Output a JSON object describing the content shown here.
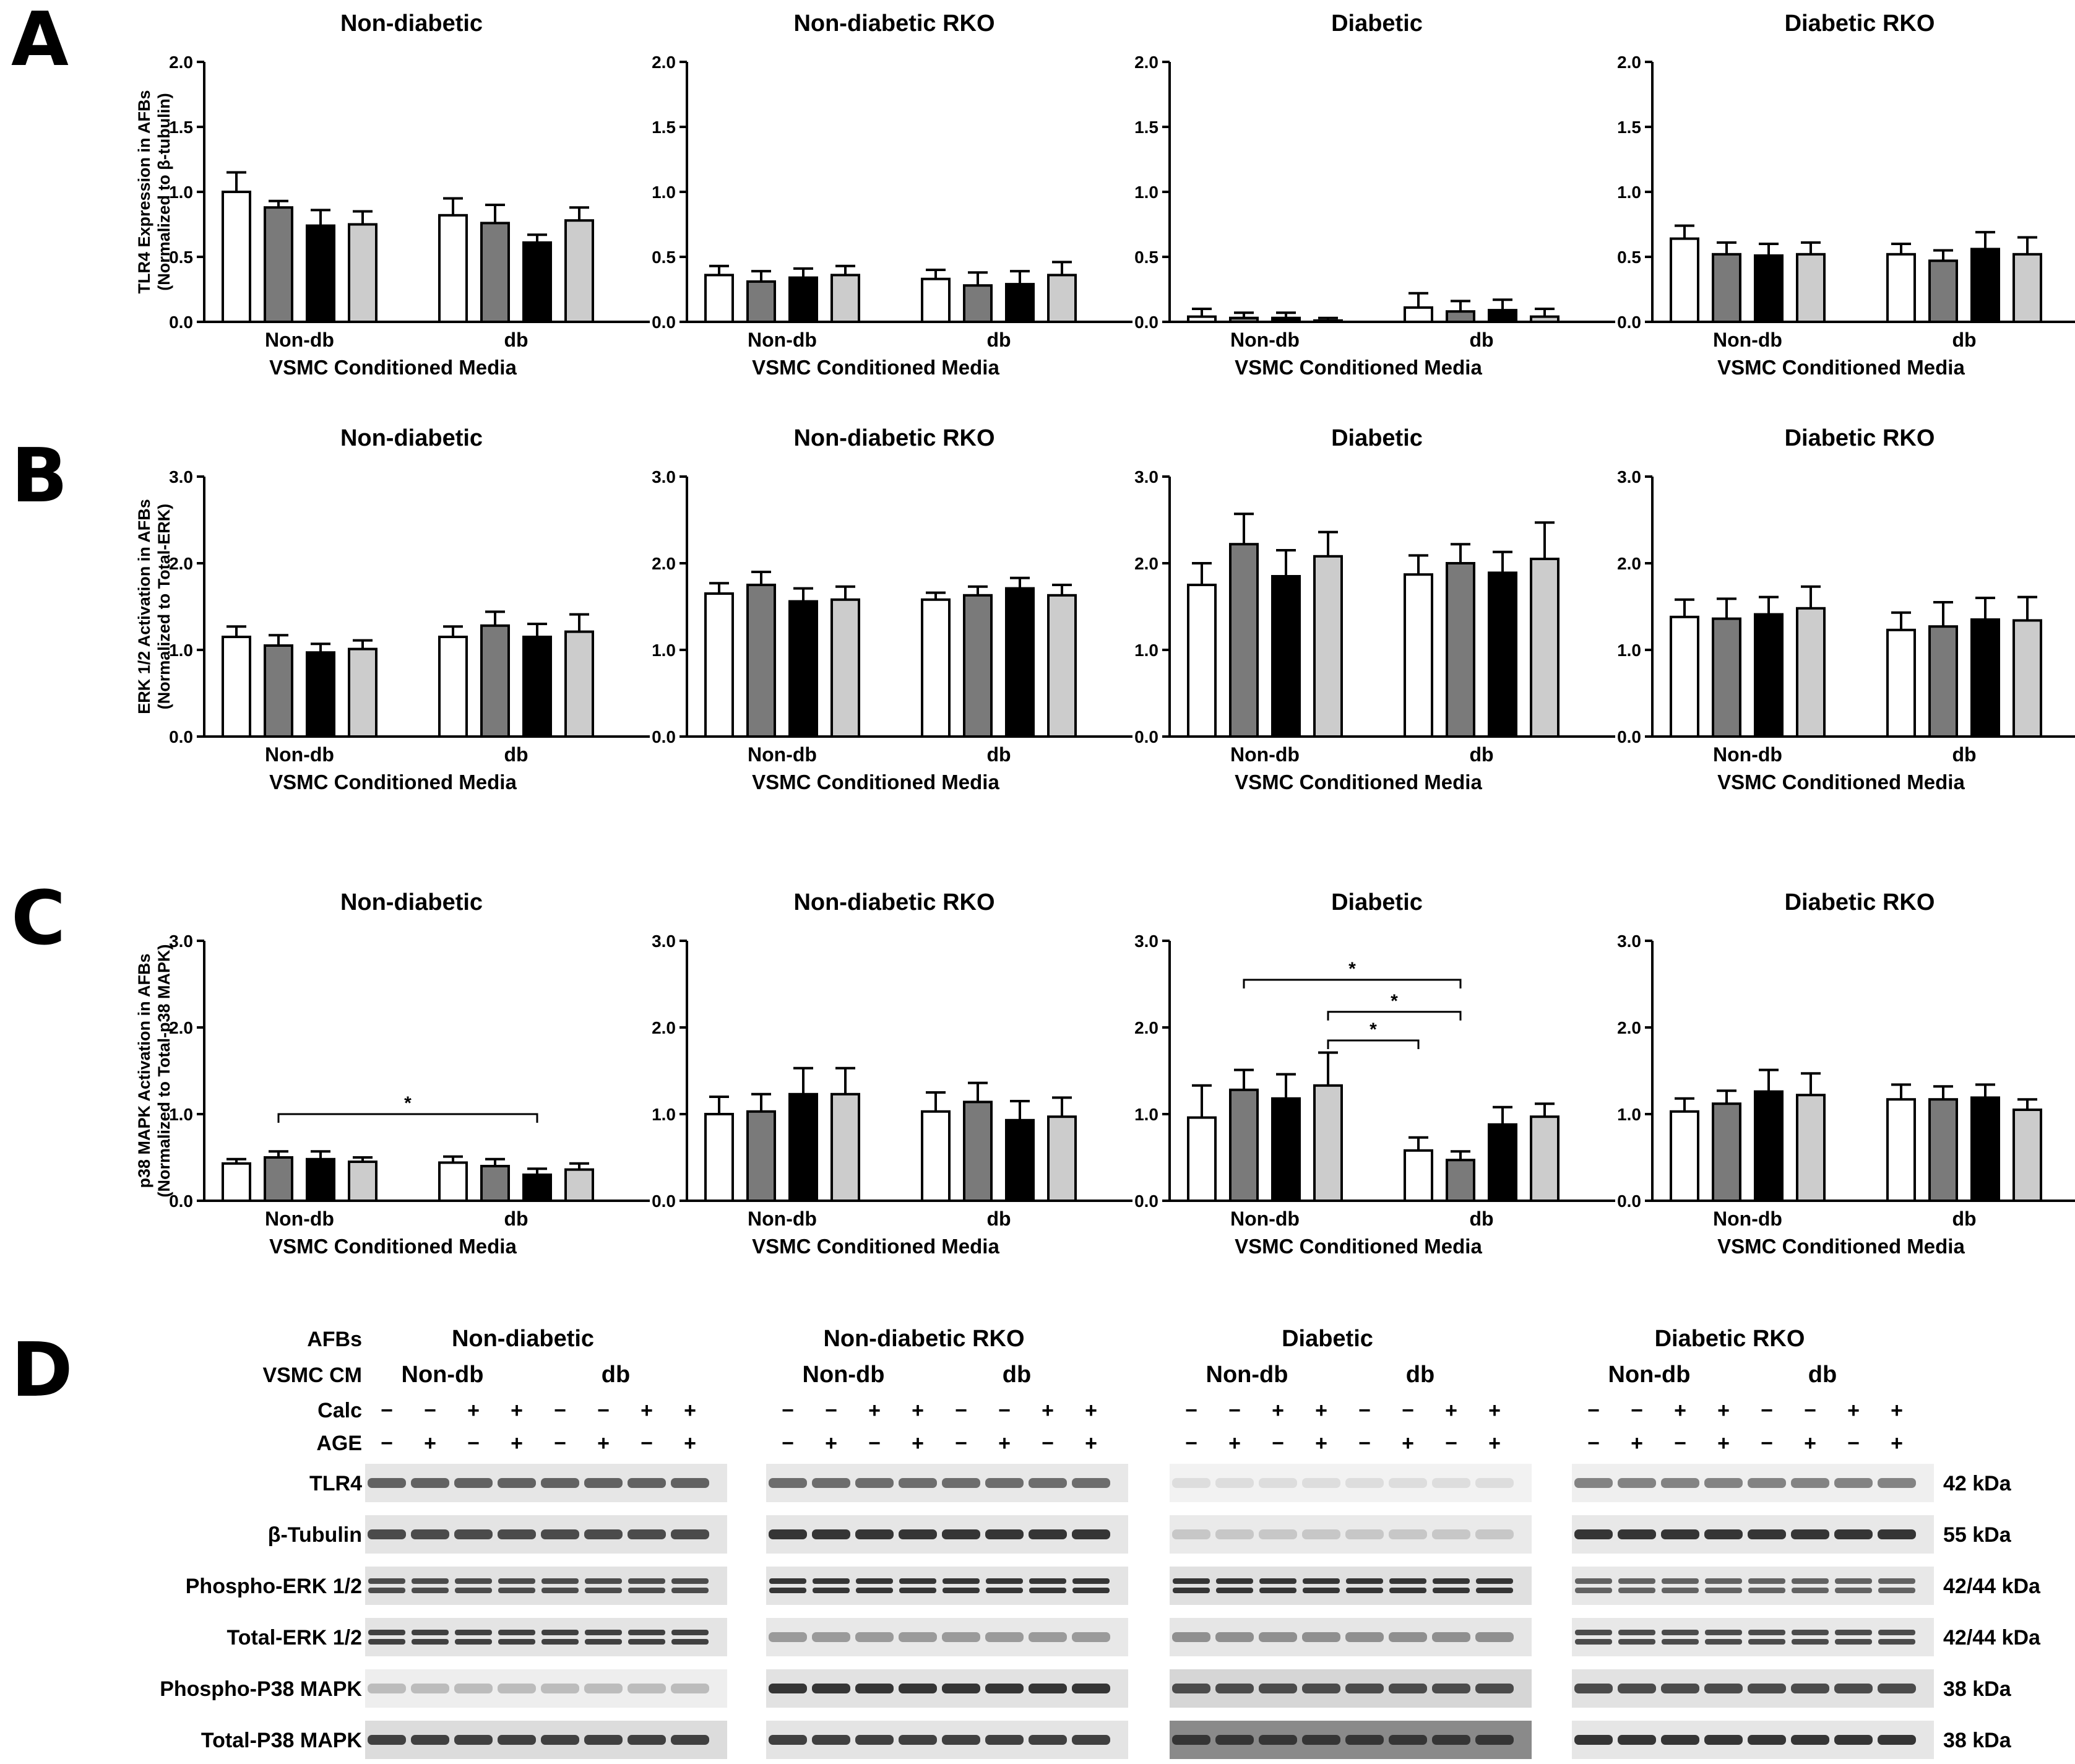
{
  "figure": {
    "panel_letters": [
      "A",
      "B",
      "C",
      "D"
    ]
  },
  "chart_data": [
    {
      "panel": "A",
      "type": "bar",
      "ylabel": [
        "TLR4 Expression in AFBs",
        "(Normalized to β-tubulin)"
      ],
      "ylim": [
        0,
        2.0
      ],
      "yticks": [
        "0.0",
        "0.5",
        "1.0",
        "1.5",
        "2.0"
      ],
      "xlabel": "VSMC Conditioned Media",
      "groups": [
        "Non-db",
        "db"
      ],
      "bar_colors": [
        "#ffffff",
        "#7a7a7a",
        "#000000",
        "#cccccc"
      ],
      "charts": [
        {
          "title": "Non-diabetic",
          "values": [
            [
              1.0,
              0.88,
              0.74,
              0.75
            ],
            [
              0.82,
              0.76,
              0.61,
              0.78
            ]
          ],
          "errors": [
            [
              0.15,
              0.05,
              0.12,
              0.1
            ],
            [
              0.13,
              0.14,
              0.06,
              0.1
            ]
          ],
          "sig": []
        },
        {
          "title": "Non-diabetic RKO",
          "values": [
            [
              0.36,
              0.31,
              0.34,
              0.36
            ],
            [
              0.33,
              0.28,
              0.29,
              0.36
            ]
          ],
          "errors": [
            [
              0.07,
              0.08,
              0.07,
              0.07
            ],
            [
              0.07,
              0.1,
              0.1,
              0.1
            ]
          ],
          "sig": []
        },
        {
          "title": "Diabetic",
          "values": [
            [
              0.04,
              0.03,
              0.03,
              0.01
            ],
            [
              0.11,
              0.08,
              0.09,
              0.04
            ]
          ],
          "errors": [
            [
              0.06,
              0.04,
              0.04,
              0.02
            ],
            [
              0.11,
              0.08,
              0.08,
              0.06
            ]
          ],
          "sig": []
        },
        {
          "title": "Diabetic RKO",
          "values": [
            [
              0.64,
              0.52,
              0.51,
              0.52
            ],
            [
              0.52,
              0.47,
              0.56,
              0.52
            ]
          ],
          "errors": [
            [
              0.1,
              0.09,
              0.09,
              0.09
            ],
            [
              0.08,
              0.08,
              0.13,
              0.13
            ]
          ],
          "sig": []
        }
      ]
    },
    {
      "panel": "B",
      "type": "bar",
      "ylabel": [
        "ERK 1/2 Activation in AFBs",
        "(Normalized to Total-ERK)"
      ],
      "ylim": [
        0,
        3.0
      ],
      "yticks": [
        "0.0",
        "1.0",
        "2.0",
        "3.0"
      ],
      "xlabel": "VSMC Conditioned Media",
      "groups": [
        "Non-db",
        "db"
      ],
      "bar_colors": [
        "#ffffff",
        "#7a7a7a",
        "#000000",
        "#cccccc"
      ],
      "charts": [
        {
          "title": "Non-diabetic",
          "values": [
            [
              1.15,
              1.05,
              0.97,
              1.01
            ],
            [
              1.15,
              1.28,
              1.15,
              1.21
            ]
          ],
          "errors": [
            [
              0.12,
              0.12,
              0.1,
              0.1
            ],
            [
              0.12,
              0.16,
              0.15,
              0.2
            ]
          ],
          "sig": []
        },
        {
          "title": "Non-diabetic RKO",
          "values": [
            [
              1.65,
              1.75,
              1.56,
              1.58
            ],
            [
              1.58,
              1.63,
              1.71,
              1.63
            ]
          ],
          "errors": [
            [
              0.12,
              0.15,
              0.15,
              0.15
            ],
            [
              0.08,
              0.1,
              0.12,
              0.12
            ]
          ],
          "sig": []
        },
        {
          "title": "Diabetic",
          "values": [
            [
              1.75,
              2.22,
              1.85,
              2.08
            ],
            [
              1.87,
              2.0,
              1.89,
              2.05
            ]
          ],
          "errors": [
            [
              0.25,
              0.35,
              0.3,
              0.28
            ],
            [
              0.22,
              0.22,
              0.24,
              0.42
            ]
          ],
          "sig": []
        },
        {
          "title": "Diabetic RKO",
          "values": [
            [
              1.38,
              1.36,
              1.41,
              1.48
            ],
            [
              1.23,
              1.27,
              1.35,
              1.34
            ]
          ],
          "errors": [
            [
              0.2,
              0.23,
              0.2,
              0.25
            ],
            [
              0.2,
              0.28,
              0.25,
              0.27
            ]
          ],
          "sig": []
        }
      ]
    },
    {
      "panel": "C",
      "type": "bar",
      "ylabel": [
        "p38 MAPK Activation in AFBs",
        "(Normalized to Total-p38 MAPK)"
      ],
      "ylim": [
        0,
        3.0
      ],
      "yticks": [
        "0.0",
        "1.0",
        "2.0",
        "3.0"
      ],
      "xlabel": "VSMC Conditioned Media",
      "groups": [
        "Non-db",
        "db"
      ],
      "bar_colors": [
        "#ffffff",
        "#7a7a7a",
        "#000000",
        "#cccccc"
      ],
      "charts": [
        {
          "title": "Non-diabetic",
          "values": [
            [
              0.43,
              0.5,
              0.48,
              0.45
            ],
            [
              0.44,
              0.4,
              0.3,
              0.36
            ]
          ],
          "errors": [
            [
              0.05,
              0.07,
              0.09,
              0.05
            ],
            [
              0.07,
              0.08,
              0.07,
              0.07
            ]
          ],
          "sig": [
            {
              "from": [
                0,
                1
              ],
              "to": [
                1,
                2
              ],
              "level": 1.0,
              "label": "*"
            }
          ]
        },
        {
          "title": "Non-diabetic RKO",
          "values": [
            [
              1.0,
              1.03,
              1.23,
              1.23
            ],
            [
              1.03,
              1.14,
              0.93,
              0.97
            ]
          ],
          "errors": [
            [
              0.2,
              0.2,
              0.3,
              0.3
            ],
            [
              0.22,
              0.22,
              0.22,
              0.22
            ]
          ],
          "sig": []
        },
        {
          "title": "Diabetic",
          "values": [
            [
              0.96,
              1.28,
              1.18,
              1.33
            ],
            [
              0.58,
              0.47,
              0.88,
              0.97
            ]
          ],
          "errors": [
            [
              0.37,
              0.23,
              0.28,
              0.38
            ],
            [
              0.15,
              0.1,
              0.2,
              0.15
            ]
          ],
          "sig": [
            {
              "from": [
                0,
                1
              ],
              "to": [
                1,
                1
              ],
              "level": 2.55,
              "label": "*"
            },
            {
              "from": [
                0,
                3
              ],
              "to": [
                1,
                1
              ],
              "level": 2.18,
              "label": "*"
            },
            {
              "from": [
                0,
                3
              ],
              "to": [
                1,
                0
              ],
              "level": 1.85,
              "label": "*"
            }
          ]
        },
        {
          "title": "Diabetic RKO",
          "values": [
            [
              1.03,
              1.12,
              1.26,
              1.22
            ],
            [
              1.17,
              1.17,
              1.19,
              1.05
            ]
          ],
          "errors": [
            [
              0.15,
              0.15,
              0.25,
              0.25
            ],
            [
              0.17,
              0.15,
              0.15,
              0.12
            ]
          ],
          "sig": []
        }
      ]
    }
  ],
  "western": {
    "header_afbs": "AFBs",
    "header_vsmc": "VSMC CM",
    "header_calc": "Calc",
    "header_age": "AGE",
    "groups": [
      "Non-db",
      "db"
    ],
    "blots": [
      {
        "title": "Non-diabetic"
      },
      {
        "title": "Non-diabetic RKO"
      },
      {
        "title": "Diabetic"
      },
      {
        "title": "Diabetic RKO"
      }
    ],
    "calc_signs": [
      "−",
      "−",
      "+",
      "+",
      "−",
      "−",
      "+",
      "+"
    ],
    "age_signs": [
      "−",
      "+",
      "−",
      "+",
      "−",
      "+",
      "−",
      "+"
    ],
    "rows": [
      {
        "label": "TLR4",
        "kda": "42 kDa"
      },
      {
        "label": "β-Tubulin",
        "kda": "55 kDa"
      },
      {
        "label": "Phospho-ERK 1/2",
        "kda": "42/44 kDa"
      },
      {
        "label": "Total-ERK 1/2",
        "kda": "42/44 kDa"
      },
      {
        "label": "Phospho-P38 MAPK",
        "kda": "38 kDa"
      },
      {
        "label": "Total-P38 MAPK",
        "kda": "38 kDa"
      }
    ],
    "band_intensity": [
      [
        0.7,
        0.65,
        0.15,
        0.55
      ],
      [
        0.8,
        0.9,
        0.25,
        0.9
      ],
      [
        0.8,
        0.9,
        0.9,
        0.7
      ],
      [
        0.85,
        0.45,
        0.5,
        0.8
      ],
      [
        0.3,
        0.9,
        0.8,
        0.8
      ],
      [
        0.85,
        0.85,
        0.9,
        0.9
      ]
    ],
    "blot_bg": [
      [
        "#e6e6e6",
        "#e8e8e8",
        "#f2f2f2",
        "#efefef"
      ],
      [
        "#e4e4e4",
        "#e6e6e6",
        "#eaeaea",
        "#e8e8e8"
      ],
      [
        "#e2e2e2",
        "#e4e4e4",
        "#e0e0e0",
        "#e8e8e8"
      ],
      [
        "#e4e4e4",
        "#e8e8e8",
        "#e6e6e6",
        "#e8e8e8"
      ],
      [
        "#eeeeee",
        "#e2e2e2",
        "#d6d6d6",
        "#e2e2e2"
      ],
      [
        "#dcdcdc",
        "#e4e4e4",
        "#8a8a8a",
        "#e6e6e6"
      ]
    ]
  }
}
